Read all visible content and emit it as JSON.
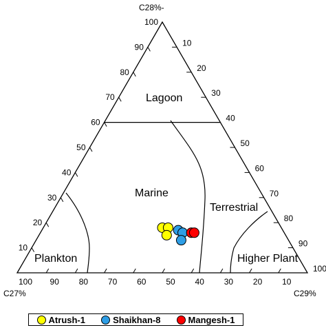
{
  "chart_data": {
    "type": "ternary",
    "corner_labels": {
      "top": "C28%-",
      "left": "C27%",
      "right": "C29%"
    },
    "right_edge_ticks": [
      "10",
      "20",
      "30",
      "40",
      "50",
      "60",
      "70",
      "80",
      "90",
      "100"
    ],
    "left_edge_ticks": [
      "100",
      "90",
      "80",
      "70",
      "60",
      "50",
      "40",
      "30",
      "20",
      "10"
    ],
    "bottom_edge_ticks": [
      "100",
      "90",
      "80",
      "70",
      "60",
      "50",
      "40",
      "30",
      "20",
      "10"
    ],
    "regions": [
      {
        "name": "Lagoon"
      },
      {
        "name": "Marine"
      },
      {
        "name": "Terrestrial"
      },
      {
        "name": "Plankton"
      },
      {
        "name": "Higher Plant"
      }
    ],
    "series": [
      {
        "name": "Atrush-1",
        "color": "#ffff00",
        "points": [
          {
            "c27": 41,
            "c28": 18,
            "c29": 41
          },
          {
            "c27": 39,
            "c28": 18,
            "c29": 43
          },
          {
            "c27": 41,
            "c28": 15,
            "c29": 44
          }
        ]
      },
      {
        "name": "Shaikhan-8",
        "color": "#2e9ee6",
        "points": [
          {
            "c27": 36,
            "c28": 17,
            "c29": 47
          },
          {
            "c27": 35,
            "c28": 16,
            "c29": 49
          },
          {
            "c27": 37,
            "c28": 13,
            "c29": 50
          }
        ]
      },
      {
        "name": "Mangesh-1",
        "color": "#ff0000",
        "points": [
          {
            "c27": 32,
            "c28": 16,
            "c29": 52
          },
          {
            "c27": 31,
            "c28": 16,
            "c29": 53
          }
        ]
      }
    ],
    "legend_position": "bottom-left"
  }
}
